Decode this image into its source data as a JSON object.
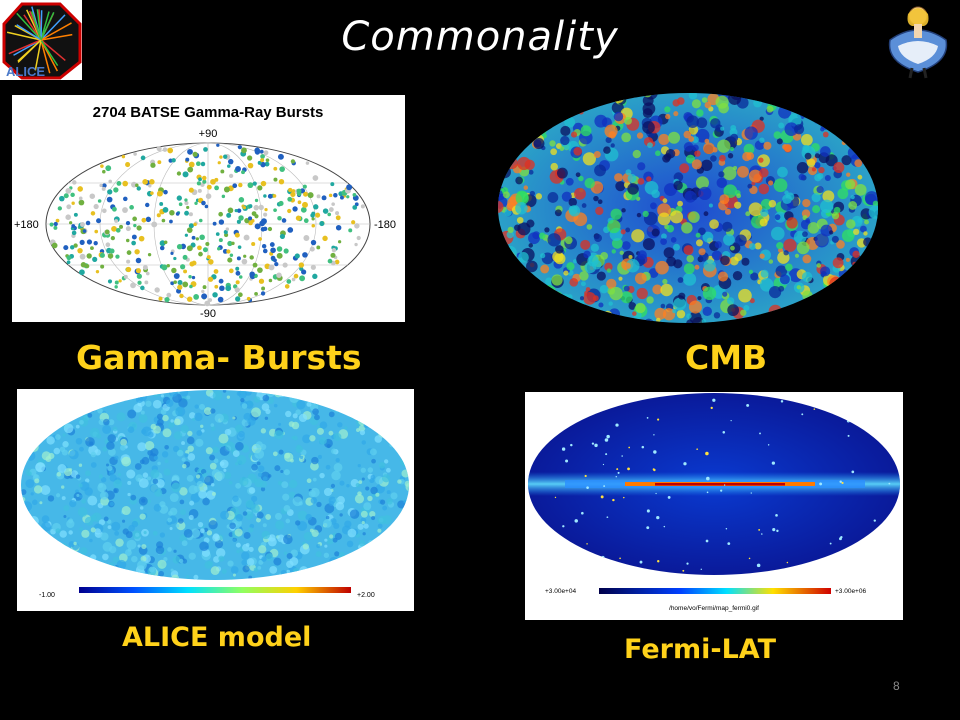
{
  "slide": {
    "title": "Commonality",
    "page_number": "8"
  },
  "logo": {
    "text": "ALICE"
  },
  "panels": {
    "grb": {
      "plot_title": "2704 BATSE Gamma-Ray Bursts",
      "label_top": "+90",
      "label_bottom": "-90",
      "label_left": "+180",
      "label_right": "-180",
      "caption": "Gamma- Bursts"
    },
    "cmb": {
      "caption": "CMB"
    },
    "alice": {
      "scale_min": "-1.00",
      "scale_max": "+2.00",
      "caption": "ALICE model"
    },
    "fermi": {
      "scale_min": "+3.00e+04",
      "scale_max": "+3.00e+06",
      "path": "/home/vo/Fermi/map_fermi0.gif",
      "caption": "Fermi-LAT"
    }
  },
  "colors": {
    "caption": "#ffd21a",
    "background": "#000000"
  }
}
